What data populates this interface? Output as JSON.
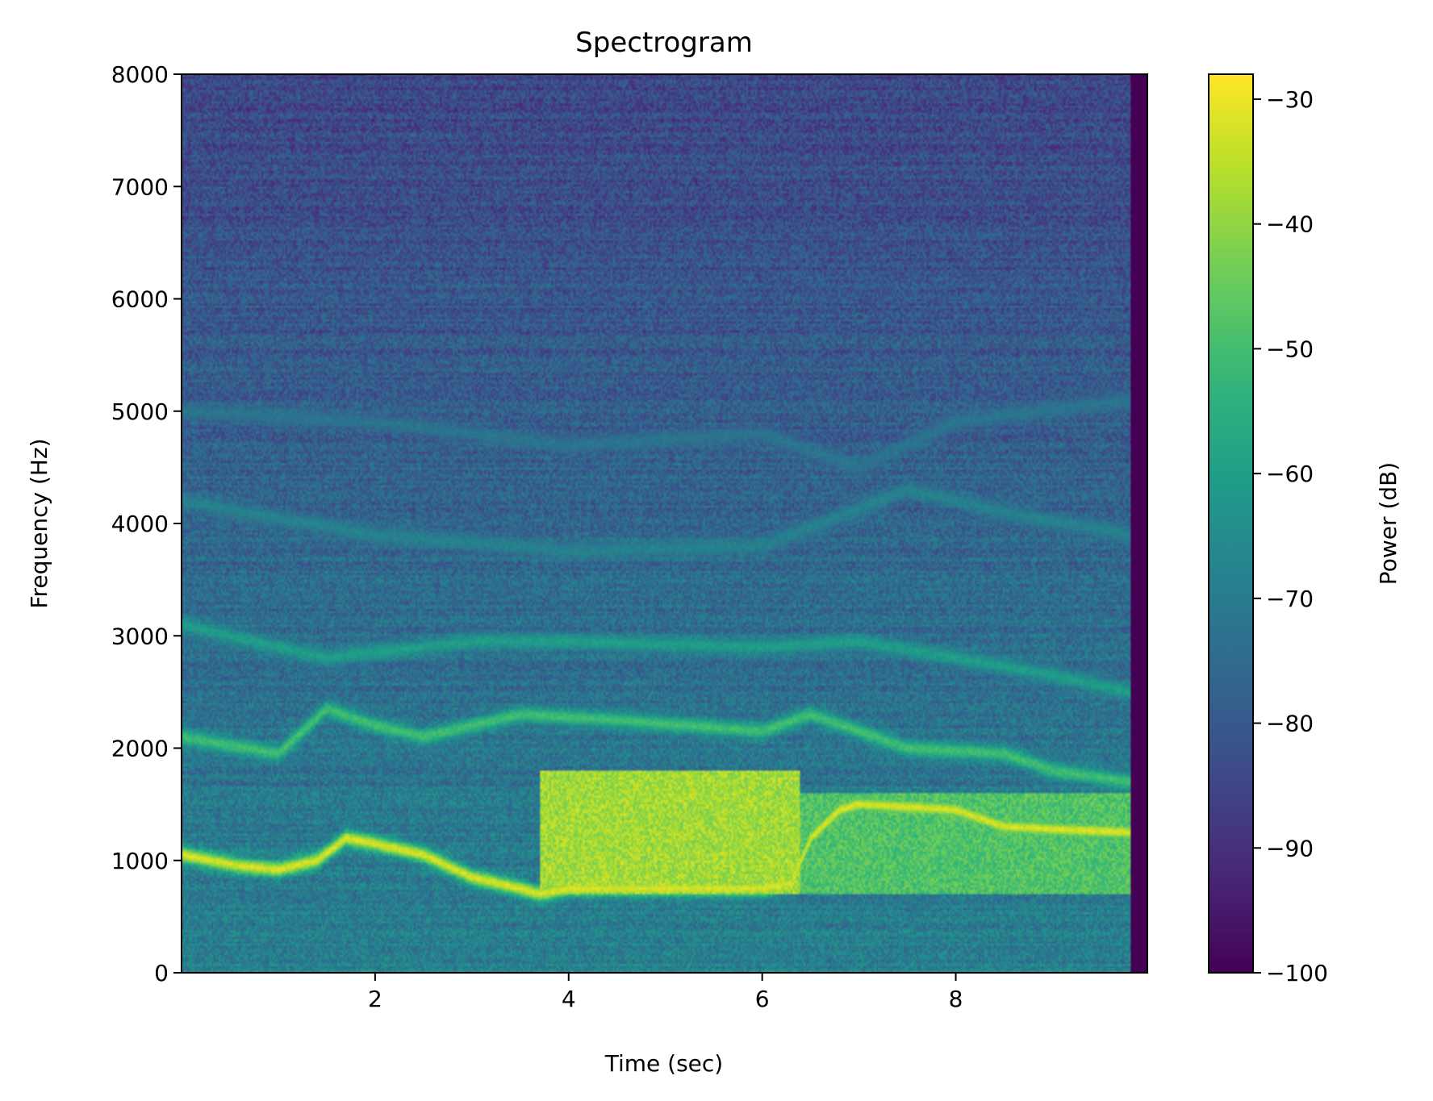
{
  "chart_data": {
    "type": "heatmap",
    "title": "Spectrogram",
    "xlabel": "Time (sec)",
    "ylabel": "Frequency (Hz)",
    "colorbar_label": "Power (dB)",
    "colormap": "viridis",
    "xlim": [
      0.0,
      9.98
    ],
    "ylim": [
      0,
      8000
    ],
    "clim": [
      -100,
      -28
    ],
    "x_ticks": [
      2,
      4,
      6,
      8
    ],
    "x_tick_labels": [
      "2",
      "4",
      "6",
      "8"
    ],
    "y_ticks": [
      0,
      1000,
      2000,
      3000,
      4000,
      5000,
      6000,
      7000,
      8000
    ],
    "y_tick_labels": [
      "0",
      "1000",
      "2000",
      "3000",
      "4000",
      "5000",
      "6000",
      "7000",
      "8000"
    ],
    "colorbar_ticks": [
      -100,
      -90,
      -80,
      -70,
      -60,
      -50,
      -40,
      -30
    ],
    "colorbar_tick_labels": [
      "−100",
      "−90",
      "−80",
      "−70",
      "−60",
      "−50",
      "−40",
      "−30"
    ],
    "background_db": {
      "at_0Hz": -68,
      "at_8000Hz": -85
    },
    "trailing_blank_from_sec": 9.8,
    "formant_tracks": [
      {
        "points": [
          [
            0.0,
            1050
          ],
          [
            0.6,
            950
          ],
          [
            1.0,
            920
          ],
          [
            1.4,
            1000
          ],
          [
            1.7,
            1200
          ],
          [
            2.0,
            1150
          ],
          [
            2.5,
            1050
          ],
          [
            3.0,
            850
          ],
          [
            3.5,
            750
          ],
          [
            3.7,
            700
          ],
          [
            4.0,
            750
          ],
          [
            6.0,
            750
          ],
          [
            6.3,
            800
          ],
          [
            6.5,
            1200
          ],
          [
            6.8,
            1450
          ],
          [
            7.0,
            1500
          ],
          [
            8.0,
            1450
          ],
          [
            8.5,
            1300
          ],
          [
            9.8,
            1250
          ]
        ],
        "db": -32
      },
      {
        "points": [
          [
            0.0,
            2100
          ],
          [
            1.0,
            1950
          ],
          [
            1.5,
            2350
          ],
          [
            2.0,
            2200
          ],
          [
            2.5,
            2100
          ],
          [
            3.5,
            2300
          ],
          [
            4.5,
            2250
          ],
          [
            6.0,
            2150
          ],
          [
            6.5,
            2300
          ],
          [
            7.5,
            2000
          ],
          [
            8.5,
            1950
          ],
          [
            9.0,
            1800
          ],
          [
            9.8,
            1700
          ]
        ],
        "db": -50
      },
      {
        "points": [
          [
            0.0,
            3100
          ],
          [
            1.5,
            2800
          ],
          [
            3.0,
            2950
          ],
          [
            4.0,
            2950
          ],
          [
            6.0,
            2900
          ],
          [
            7.0,
            2950
          ],
          [
            8.0,
            2800
          ],
          [
            9.0,
            2650
          ],
          [
            9.8,
            2500
          ]
        ],
        "db": -60
      },
      {
        "points": [
          [
            0.0,
            4200
          ],
          [
            2.0,
            3900
          ],
          [
            4.0,
            3750
          ],
          [
            6.0,
            3800
          ],
          [
            7.5,
            4300
          ],
          [
            8.5,
            4100
          ],
          [
            9.8,
            3900
          ]
        ],
        "db": -68
      },
      {
        "points": [
          [
            0.0,
            5000
          ],
          [
            2.0,
            4900
          ],
          [
            4.0,
            4700
          ],
          [
            6.0,
            4800
          ],
          [
            7.0,
            4500
          ],
          [
            8.0,
            4900
          ],
          [
            9.8,
            5100
          ]
        ],
        "db": -72
      }
    ],
    "energy_regions": [
      {
        "time": [
          3.7,
          6.4
        ],
        "freq": [
          700,
          1800
        ],
        "db": -38
      },
      {
        "time": [
          6.4,
          9.8
        ],
        "freq": [
          700,
          1600
        ],
        "db": -48
      }
    ]
  }
}
